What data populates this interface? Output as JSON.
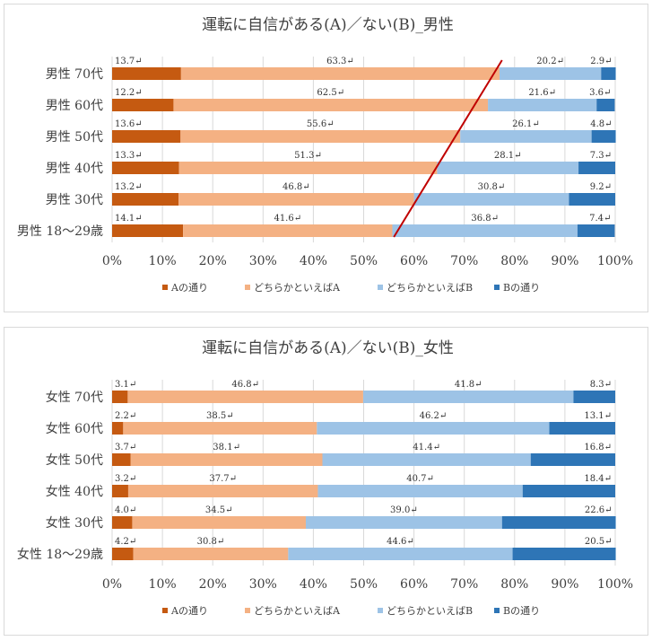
{
  "colors": {
    "a_full": "#c55a11",
    "a_lean": "#f4b183",
    "b_lean": "#9dc3e6",
    "b_full": "#2e75b6",
    "trend_line": "#c00000",
    "grid": "#d9d9d9",
    "text": "#404040"
  },
  "chart_data": [
    {
      "type": "bar",
      "orientation": "horizontal-stacked-100",
      "title": "運転に自信がある(A)／ない(B)_男性",
      "categories": [
        "男性 70代",
        "男性 60代",
        "男性 50代",
        "男性 40代",
        "男性 30代",
        "男性 18〜29歳"
      ],
      "series": [
        {
          "name": "Aの通り",
          "color_key": "a_full",
          "values": [
            13.7,
            12.2,
            13.6,
            13.3,
            13.2,
            14.1
          ],
          "labels": [
            "13.7↵",
            "12.2↵",
            "13.6↵",
            "13.3↵",
            "13.2↵",
            "14.1↵"
          ]
        },
        {
          "name": "どちらかといえばA",
          "color_key": "a_lean",
          "values": [
            63.3,
            62.5,
            55.6,
            51.3,
            46.8,
            41.6
          ],
          "labels": [
            "63.3↵",
            "62.5↵",
            "55.6↵",
            "51.3↵",
            "46.8↵",
            "41.6↵"
          ]
        },
        {
          "name": "どちらかといえばB",
          "color_key": "b_lean",
          "values": [
            20.2,
            21.6,
            26.1,
            28.1,
            30.8,
            36.8
          ],
          "labels": [
            "20.2↵",
            "21.6↵",
            "26.1↵",
            "28.1↵",
            "30.8↵",
            "36.8↵"
          ]
        },
        {
          "name": "Bの通り",
          "color_key": "b_full",
          "values": [
            2.9,
            3.6,
            4.8,
            7.3,
            9.2,
            7.4
          ],
          "labels": [
            "2.9↵",
            "3.6↵",
            "4.8↵",
            "7.3↵",
            "9.2↵",
            "7.4↵"
          ]
        }
      ],
      "xlim": [
        0,
        100
      ],
      "ticks": [
        "0%",
        "10%",
        "20%",
        "30%",
        "40%",
        "50%",
        "60%",
        "70%",
        "80%",
        "90%",
        "100%"
      ],
      "grid": true,
      "legend_position": "bottom",
      "annotation": {
        "type": "trend-line",
        "from_pct": 56,
        "to_pct": 77.5
      }
    },
    {
      "type": "bar",
      "orientation": "horizontal-stacked-100",
      "title": "運転に自信がある(A)／ない(B)_女性",
      "categories": [
        "女性 70代",
        "女性 60代",
        "女性 50代",
        "女性 40代",
        "女性 30代",
        "女性 18〜29歳"
      ],
      "series": [
        {
          "name": "Aの通り",
          "color_key": "a_full",
          "values": [
            3.1,
            2.2,
            3.7,
            3.2,
            4.0,
            4.2
          ],
          "labels": [
            "3.1↵",
            "2.2↵",
            "3.7↵",
            "3.2↵",
            "4.0↵",
            "4.2↵"
          ]
        },
        {
          "name": "どちらかといえばA",
          "color_key": "a_lean",
          "values": [
            46.8,
            38.5,
            38.1,
            37.7,
            34.5,
            30.8
          ],
          "labels": [
            "46.8↵",
            "38.5↵",
            "38.1↵",
            "37.7↵",
            "34.5↵",
            "30.8↵"
          ]
        },
        {
          "name": "どちらかといえばB",
          "color_key": "b_lean",
          "values": [
            41.8,
            46.2,
            41.4,
            40.7,
            39.0,
            44.6
          ],
          "labels": [
            "41.8↵",
            "46.2↵",
            "41.4↵",
            "40.7↵",
            "39.0↵",
            "44.6↵"
          ]
        },
        {
          "name": "Bの通り",
          "color_key": "b_full",
          "values": [
            8.3,
            13.1,
            16.8,
            18.4,
            22.6,
            20.5
          ],
          "labels": [
            "8.3↵",
            "13.1↵",
            "16.8↵",
            "18.4↵",
            "22.6↵",
            "20.5↵"
          ]
        }
      ],
      "xlim": [
        0,
        100
      ],
      "ticks": [
        "0%",
        "10%",
        "20%",
        "30%",
        "40%",
        "50%",
        "60%",
        "70%",
        "80%",
        "90%",
        "100%"
      ],
      "grid": true,
      "legend_position": "bottom"
    }
  ]
}
